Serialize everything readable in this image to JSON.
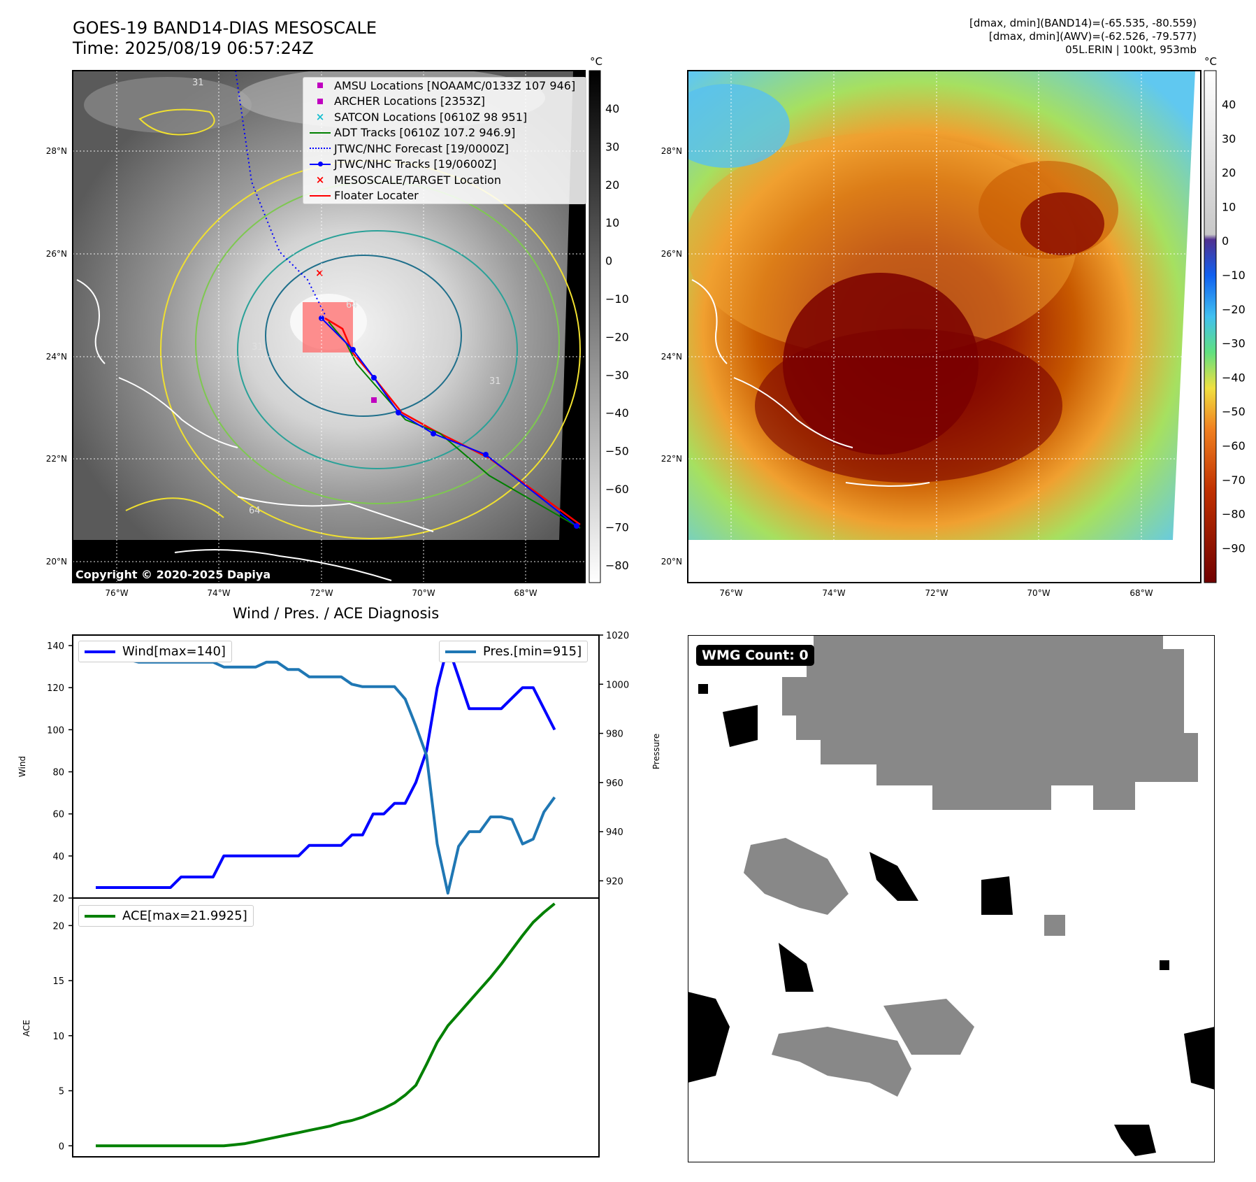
{
  "header": {
    "title_line1": "GOES-19 BAND14-DIAS MESOSCALE",
    "title_line2": "Time: 2025/08/19 06:57:24Z",
    "info_line1": "[dmax, dmin](BAND14)=(-65.535, -80.559)",
    "info_line2": "[dmax, dmin](AWV)=(-62.526, -79.577)",
    "info_line3": "05L.ERIN | 100kt, 953mb"
  },
  "map": {
    "lat_labels": [
      "28°N",
      "26°N",
      "24°N",
      "22°N",
      "20°N"
    ],
    "lon_labels": [
      "76°W",
      "74°W",
      "72°W",
      "70°W",
      "68°W"
    ],
    "copyright": "Copyright © 2020-2025 Dapiya",
    "contour_labels": [
      "31",
      "64",
      "64",
      "31",
      "31"
    ],
    "colorbar_unit": "°C",
    "colorbar1_ticks": [
      "40",
      "30",
      "20",
      "10",
      "0",
      "−10",
      "−20",
      "−30",
      "−40",
      "−50",
      "−60",
      "−70",
      "−80"
    ],
    "colorbar2_ticks": [
      "40",
      "30",
      "20",
      "10",
      "0",
      "−10",
      "−20",
      "−30",
      "−40",
      "−50",
      "−60",
      "−70",
      "−80",
      "−90"
    ],
    "legend": [
      {
        "label": "AMSU Locations [NOAAMC/0133Z 107 946]",
        "symbol": "square",
        "color": "#c000c0"
      },
      {
        "label": "ARCHER Locations [2353Z]",
        "symbol": "square",
        "color": "#c000c0"
      },
      {
        "label": "SATCON Locations [0610Z 98 951]",
        "symbol": "x",
        "color": "#17becf"
      },
      {
        "label": "ADT Tracks [0610Z 107.2 946.9]",
        "symbol": "line",
        "color": "#008000"
      },
      {
        "label": "JTWC/NHC Forecast [19/0000Z]",
        "symbol": "dotted",
        "color": "#0000ff"
      },
      {
        "label": "JTWC/NHC Tracks [19/0600Z]",
        "symbol": "linedot",
        "color": "#0000ff"
      },
      {
        "label": "MESOSCALE/TARGET Location",
        "symbol": "x",
        "color": "#ff0000"
      },
      {
        "label": "Floater Locater",
        "symbol": "line",
        "color": "#ff0000"
      }
    ]
  },
  "diagnosis": {
    "title": "Wind / Pres. / ACE Diagnosis",
    "wind_legend": "Wind[max=140]",
    "pres_legend": "Pres.[min=915]",
    "ace_legend": "ACE[max=21.9925]",
    "wind_axis_label": "Wind",
    "pres_axis_label": "Pressure",
    "ace_axis_label": "ACE"
  },
  "wmg": {
    "badge": "WMG Count: 0"
  },
  "chart_data": [
    {
      "type": "line",
      "title": "Wind / Pres. / ACE Diagnosis",
      "ylabel": "Wind",
      "ylim": [
        20,
        145
      ],
      "yticks": [
        20,
        40,
        60,
        80,
        100,
        120,
        140
      ],
      "x": [
        0,
        1,
        2,
        3,
        4,
        5,
        6,
        7,
        8,
        9,
        10,
        11,
        12,
        13,
        14,
        15,
        16,
        17,
        18,
        19,
        20,
        21,
        22,
        23,
        24,
        25,
        26,
        27,
        28,
        29,
        30,
        31,
        32,
        33,
        34,
        35,
        36,
        37,
        38,
        39,
        40,
        41,
        42,
        43,
        44,
        45
      ],
      "series": [
        {
          "name": "Wind[max=140]",
          "color": "#0000ff",
          "values": [
            25,
            25,
            25,
            25,
            25,
            25,
            25,
            25,
            30,
            30,
            30,
            30,
            40,
            40,
            40,
            40,
            40,
            40,
            40,
            40,
            45,
            45,
            45,
            45,
            50,
            50,
            60,
            60,
            65,
            65,
            75,
            90,
            120,
            140,
            125,
            110,
            110,
            110,
            110,
            115,
            120,
            120,
            110,
            100,
            null,
            null
          ]
        }
      ]
    },
    {
      "type": "line",
      "ylabel": "Pressure",
      "ylim": [
        913,
        1020
      ],
      "yticks": [
        920,
        940,
        960,
        980,
        1000,
        1020
      ],
      "x": [
        0,
        1,
        2,
        3,
        4,
        5,
        6,
        7,
        8,
        9,
        10,
        11,
        12,
        13,
        14,
        15,
        16,
        17,
        18,
        19,
        20,
        21,
        22,
        23,
        24,
        25,
        26,
        27,
        28,
        29,
        30,
        31,
        32,
        33,
        34,
        35,
        36,
        37,
        38,
        39,
        40,
        41,
        42,
        43,
        44,
        45
      ],
      "series": [
        {
          "name": "Pres.[min=915]",
          "color": "#1f77b4",
          "values": [
            1015,
            1015,
            1011,
            1010,
            1009,
            1009,
            1009,
            1009,
            1009,
            1009,
            1009,
            1009,
            1007,
            1007,
            1007,
            1007,
            1009,
            1009,
            1006,
            1006,
            1003,
            1003,
            1003,
            1003,
            1000,
            999,
            999,
            999,
            999,
            994,
            983,
            971,
            935,
            915,
            934,
            940,
            940,
            946,
            946,
            945,
            935,
            937,
            948,
            954,
            null,
            null
          ]
        }
      ]
    },
    {
      "type": "line",
      "ylabel": "ACE",
      "ylim": [
        -1,
        22.5
      ],
      "yticks": [
        0,
        5,
        10,
        15,
        20
      ],
      "x": [
        0,
        1,
        2,
        3,
        4,
        5,
        6,
        7,
        8,
        9,
        10,
        11,
        12,
        13,
        14,
        15,
        16,
        17,
        18,
        19,
        20,
        21,
        22,
        23,
        24,
        25,
        26,
        27,
        28,
        29,
        30,
        31,
        32,
        33,
        34,
        35,
        36,
        37,
        38,
        39,
        40,
        41,
        42,
        43
      ],
      "series": [
        {
          "name": "ACE[max=21.9925]",
          "color": "#008000",
          "values": [
            0,
            0,
            0,
            0,
            0,
            0,
            0,
            0,
            0,
            0,
            0,
            0,
            0,
            0.1,
            0.2,
            0.4,
            0.6,
            0.8,
            1.0,
            1.2,
            1.4,
            1.6,
            1.8,
            2.1,
            2.3,
            2.6,
            3.0,
            3.4,
            3.9,
            4.6,
            5.5,
            7.4,
            9.4,
            10.9,
            12.0,
            13.1,
            14.2,
            15.3,
            16.5,
            17.8,
            19.1,
            20.3,
            21.2,
            21.9925
          ]
        }
      ]
    }
  ]
}
